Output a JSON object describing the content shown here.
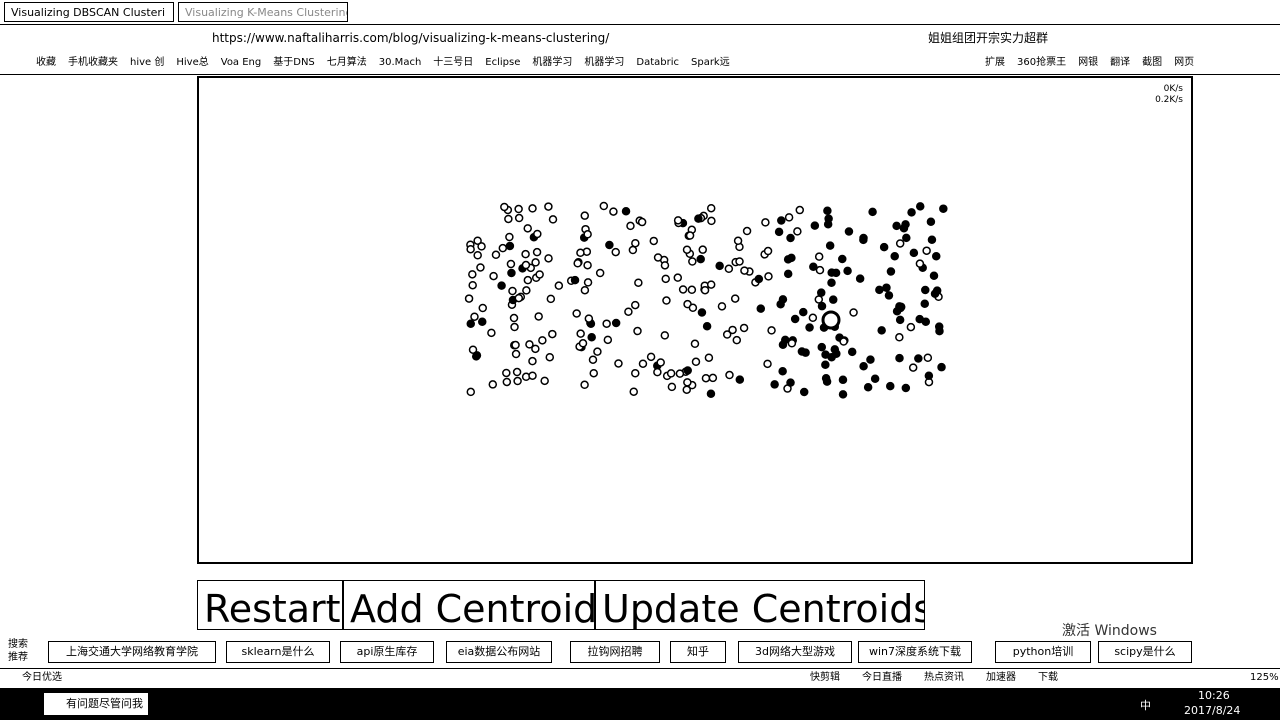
{
  "browser": {
    "tabs": [
      "Visualizing DBSCAN Clusteri",
      "Visualizing K-Means Clustering"
    ],
    "url": "https://www.naftaliharris.com/blog/visualizing-k-means-clustering/",
    "search_hint": "姐姐组团开宗实力超群",
    "bookmarks": [
      "收藏",
      "手机收藏夹",
      "hive 创",
      "Hive总",
      "Voa Eng",
      "基于DNS",
      "七月算法",
      "30.Mach",
      "十三号日",
      "Eclipse",
      "机器学习",
      "机器学习",
      "Databric",
      "Spark远"
    ],
    "bookmark_tools": [
      "扩展",
      "360抢票王",
      "网银",
      "翻译",
      "截图",
      "网页"
    ],
    "speed": [
      "0K/s",
      "0.2K/s"
    ]
  },
  "page": {
    "buttons": [
      "Restart",
      "Add Centroid",
      "Update Centroids"
    ]
  },
  "search_bar": {
    "label": "搜索推荐",
    "items": [
      "上海交通大学网络教育学院",
      "sklearn是什么",
      "api原生库存",
      "eia数据公布网站",
      "拉钩网招聘",
      "知乎",
      "3d网络大型游戏",
      "win7深度系统下载",
      "python培训",
      "scipy是什么"
    ]
  },
  "status_bar": {
    "left": "今日优选",
    "items": [
      "快剪辑",
      "今日直播",
      "热点资讯",
      "加速器",
      "下载"
    ],
    "zoom": "125%"
  },
  "watermark": "激活 Windows",
  "taskbar": {
    "search": "有问题尽管问我",
    "ime": "中",
    "time": "10:26",
    "date": "2017/8/24"
  }
}
